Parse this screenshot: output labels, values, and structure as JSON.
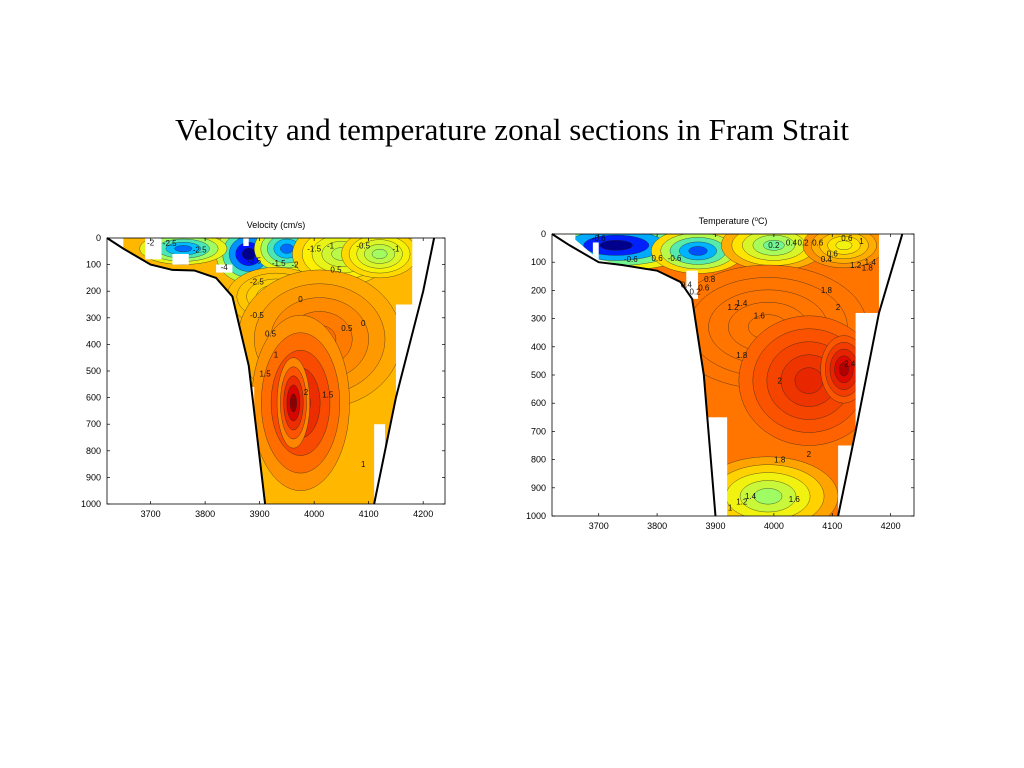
{
  "slide": {
    "title": "Velocity and temperature zonal sections in Fram Strait"
  },
  "chart_data": [
    {
      "type": "contour",
      "title": "Velocity (cm/s)",
      "xlabel": "",
      "ylabel": "",
      "xlim": [
        3620,
        4240
      ],
      "ylim": [
        1000,
        0
      ],
      "x_ticks": [
        3700,
        3800,
        3900,
        4000,
        4100,
        4200
      ],
      "y_ticks": [
        0,
        100,
        200,
        300,
        400,
        500,
        600,
        700,
        800,
        900,
        1000
      ],
      "colorscale": "jet",
      "value_range": [
        -4.5,
        2.5
      ],
      "bottom_topography": [
        [
          3620,
          0
        ],
        [
          3650,
          40
        ],
        [
          3700,
          100
        ],
        [
          3740,
          120
        ],
        [
          3780,
          122
        ],
        [
          3820,
          150
        ],
        [
          3850,
          220
        ],
        [
          3880,
          480
        ],
        [
          3910,
          1000
        ],
        [
          4110,
          1000
        ],
        [
          4150,
          600
        ],
        [
          4200,
          200
        ],
        [
          4220,
          0
        ]
      ],
      "field_zones": [
        {
          "region": "west surface",
          "value": -2.0
        },
        {
          "region": "core surface",
          "value": -4.5
        },
        {
          "region": "east surface",
          "value": 0.0
        },
        {
          "region": "mid section",
          "value": 1.0
        },
        {
          "region": "deep core",
          "value": 2.2
        }
      ],
      "contour_labels": [
        {
          "x": 3735,
          "y": 30,
          "text": "-2.5"
        },
        {
          "x": 3700,
          "y": 28,
          "text": "-2"
        },
        {
          "x": 3790,
          "y": 55,
          "text": "-2.5"
        },
        {
          "x": 3835,
          "y": 120,
          "text": "-4"
        },
        {
          "x": 3890,
          "y": 95,
          "text": "-3.5"
        },
        {
          "x": 3895,
          "y": 175,
          "text": "-2.5"
        },
        {
          "x": 3935,
          "y": 105,
          "text": "-1.5"
        },
        {
          "x": 3965,
          "y": 110,
          "text": "-2"
        },
        {
          "x": 4000,
          "y": 50,
          "text": "-1.5"
        },
        {
          "x": 4030,
          "y": 40,
          "text": "-1"
        },
        {
          "x": 4090,
          "y": 40,
          "text": "-0.5"
        },
        {
          "x": 4150,
          "y": 50,
          "text": "-1"
        },
        {
          "x": 4040,
          "y": 130,
          "text": "0.5"
        },
        {
          "x": 3895,
          "y": 300,
          "text": "-0.5"
        },
        {
          "x": 3920,
          "y": 370,
          "text": "0.5"
        },
        {
          "x": 3975,
          "y": 240,
          "text": "0"
        },
        {
          "x": 4060,
          "y": 350,
          "text": "0.5"
        },
        {
          "x": 4090,
          "y": 330,
          "text": "0"
        },
        {
          "x": 3910,
          "y": 520,
          "text": "1.5"
        },
        {
          "x": 3985,
          "y": 590,
          "text": "2"
        },
        {
          "x": 3930,
          "y": 450,
          "text": "1"
        },
        {
          "x": 4025,
          "y": 600,
          "text": "1.5"
        },
        {
          "x": 4090,
          "y": 860,
          "text": "1"
        }
      ]
    },
    {
      "type": "contour",
      "title": "Temperature (",
      "title_sup": "o",
      "title_end": "C)",
      "xlabel": "",
      "ylabel": "",
      "xlim": [
        3620,
        4240
      ],
      "ylim": [
        1000,
        0
      ],
      "x_ticks": [
        3700,
        3800,
        3900,
        4000,
        4100,
        4200
      ],
      "y_ticks": [
        0,
        100,
        200,
        300,
        400,
        500,
        600,
        700,
        800,
        900,
        1000
      ],
      "colorscale": "jet",
      "value_range": [
        -1.2,
        2.6
      ],
      "bottom_topography": [
        [
          3620,
          0
        ],
        [
          3650,
          40
        ],
        [
          3700,
          100
        ],
        [
          3740,
          110
        ],
        [
          3800,
          130
        ],
        [
          3840,
          170
        ],
        [
          3860,
          230
        ],
        [
          3880,
          500
        ],
        [
          3900,
          1000
        ],
        [
          4110,
          1000
        ],
        [
          4140,
          700
        ],
        [
          4180,
          280
        ],
        [
          4220,
          0
        ]
      ],
      "field_zones": [
        {
          "region": "west surface",
          "value": -0.8
        },
        {
          "region": "surface front",
          "value": 0.6
        },
        {
          "region": "east surface",
          "value": 1.2
        },
        {
          "region": "intermediate",
          "value": 1.8
        },
        {
          "region": "warm core",
          "value": 2.4
        },
        {
          "region": "bottom",
          "value": 1.0
        }
      ],
      "contour_labels": [
        {
          "x": 3700,
          "y": 25,
          "text": "-0.6"
        },
        {
          "x": 3755,
          "y": 100,
          "text": "-0.6"
        },
        {
          "x": 3800,
          "y": 95,
          "text": "0.6"
        },
        {
          "x": 3830,
          "y": 95,
          "text": "-0.6"
        },
        {
          "x": 3850,
          "y": 190,
          "text": "0.4"
        },
        {
          "x": 3865,
          "y": 215,
          "text": "0.2"
        },
        {
          "x": 3880,
          "y": 200,
          "text": "0.6"
        },
        {
          "x": 3890,
          "y": 170,
          "text": "0.8"
        },
        {
          "x": 3930,
          "y": 270,
          "text": "1.2"
        },
        {
          "x": 3945,
          "y": 255,
          "text": "1.4"
        },
        {
          "x": 3975,
          "y": 300,
          "text": "1.6"
        },
        {
          "x": 4000,
          "y": 50,
          "text": "0.2"
        },
        {
          "x": 4030,
          "y": 40,
          "text": "0.4"
        },
        {
          "x": 4050,
          "y": 40,
          "text": "0.2"
        },
        {
          "x": 4075,
          "y": 40,
          "text": "0.6"
        },
        {
          "x": 4090,
          "y": 100,
          "text": "0.4"
        },
        {
          "x": 4100,
          "y": 80,
          "text": "0.6"
        },
        {
          "x": 4125,
          "y": 25,
          "text": "0.6"
        },
        {
          "x": 4150,
          "y": 35,
          "text": "1"
        },
        {
          "x": 4140,
          "y": 120,
          "text": "1.2"
        },
        {
          "x": 4165,
          "y": 110,
          "text": "1.4"
        },
        {
          "x": 4160,
          "y": 130,
          "text": "1.8"
        },
        {
          "x": 4110,
          "y": 270,
          "text": "2"
        },
        {
          "x": 4090,
          "y": 210,
          "text": "1.8"
        },
        {
          "x": 3945,
          "y": 440,
          "text": "1.8"
        },
        {
          "x": 4010,
          "y": 530,
          "text": "2"
        },
        {
          "x": 4130,
          "y": 470,
          "text": "2.4"
        },
        {
          "x": 4010,
          "y": 810,
          "text": "1.8"
        },
        {
          "x": 3960,
          "y": 940,
          "text": "1.4"
        },
        {
          "x": 3945,
          "y": 960,
          "text": "1.2"
        },
        {
          "x": 4035,
          "y": 950,
          "text": "1.6"
        },
        {
          "x": 3925,
          "y": 980,
          "text": "1"
        },
        {
          "x": 4060,
          "y": 790,
          "text": "2"
        }
      ]
    }
  ]
}
